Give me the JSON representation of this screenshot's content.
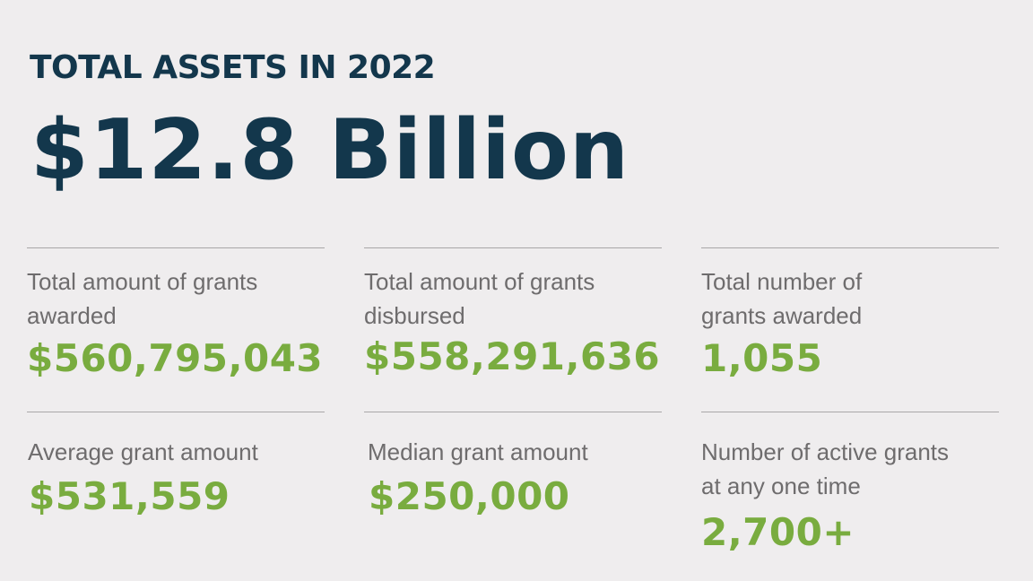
{
  "heading": "TOTAL ASSETS IN 2022",
  "total_assets": "$12.8 Billion",
  "colors": {
    "background": "#efedee",
    "heading": "#13374c",
    "label": "#6e6c6d",
    "value": "#79ac3f",
    "rule": "#a9a7a8"
  },
  "stats": [
    {
      "label_line1": "Total amount of grants",
      "label_line2": "awarded",
      "value": "$560,795,043"
    },
    {
      "label_line1": "Total amount of grants",
      "label_line2": "disbursed",
      "value": "$558,291,636"
    },
    {
      "label_line1": "Total number of",
      "label_line2": "grants awarded",
      "value": "1,055"
    },
    {
      "label_line1": "Average grant amount",
      "label_line2": "",
      "value": "$531,559"
    },
    {
      "label_line1": "Median grant amount",
      "label_line2": "",
      "value": "$250,000"
    },
    {
      "label_line1": "Number of active grants",
      "label_line2": "at any one time",
      "value": "2,700+"
    }
  ]
}
